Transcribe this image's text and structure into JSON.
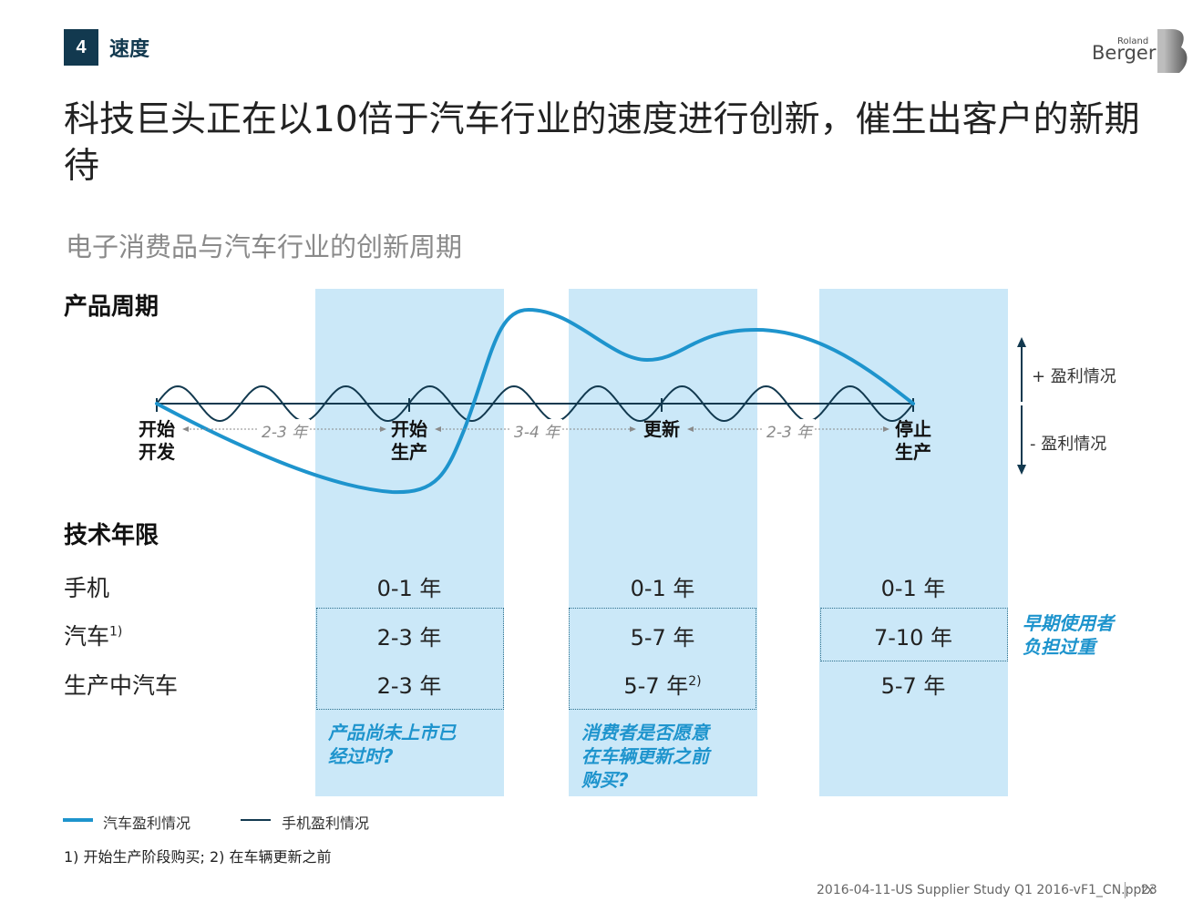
{
  "header": {
    "section_number": "4",
    "section_title": "速度",
    "logo_line1": "Roland",
    "logo_line2": "Berger"
  },
  "title": "科技巨头正在以10倍于汽车行业的速度进行创新，催生出客户的新期待",
  "subtitle": "电子消费品与汽车行业的创新周期",
  "product_cycle": {
    "heading": "产品周期",
    "stages": [
      {
        "line1": "开始",
        "line2": "开发"
      },
      {
        "line1": "开始",
        "line2": "生产"
      },
      {
        "line1": "更新",
        "line2": ""
      },
      {
        "line1": "停止",
        "line2": "生产"
      }
    ],
    "durations": [
      "2-3 年",
      "3-4 年",
      "2-3 年"
    ],
    "profit_positive": "+ 盈利情况",
    "profit_negative": "- 盈利情况"
  },
  "tech_life": {
    "heading": "技术年限",
    "rows": [
      {
        "label": "手机",
        "sup": "",
        "values": [
          "0-1 年",
          "0-1 年",
          "0-1 年"
        ],
        "value_sups": [
          "",
          "",
          ""
        ]
      },
      {
        "label": "汽车",
        "sup": "1)",
        "values": [
          "2-3 年",
          "5-7 年",
          "7-10 年"
        ],
        "value_sups": [
          "",
          "",
          ""
        ]
      },
      {
        "label": "生产中汽车",
        "sup": "",
        "values": [
          "2-3 年",
          "5-7 年",
          "5-7 年"
        ],
        "value_sups": [
          "",
          "2)",
          ""
        ]
      }
    ],
    "side_note": [
      "早期使用者",
      "负担过重"
    ],
    "notes": [
      [
        "产品尚未上市已",
        "经过时?"
      ],
      [
        "消费者是否愿意",
        "在车辆更新之前",
        "购买?"
      ]
    ]
  },
  "legend": {
    "car": "汽车盈利情况",
    "phone": "手机盈利情况"
  },
  "footnote": "1) 开始生产阶段购买; 2) 在车辆更新之前",
  "footer": {
    "file": "2016-04-11-US Supplier Study Q1 2016-vF1_CN.pptx",
    "page": "23"
  },
  "colors": {
    "band": "#cbe8f8",
    "car_curve": "#1e94cd",
    "phone_curve": "#12394f",
    "accent_text": "#1e94cd",
    "section_bg": "#12394f"
  }
}
